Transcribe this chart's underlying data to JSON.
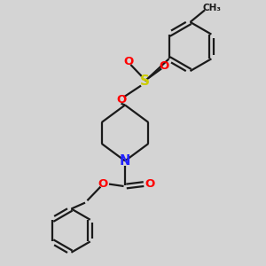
{
  "bg_color": "#d4d4d4",
  "bond_color": "#1a1a1a",
  "atom_colors": {
    "O": "#ff0000",
    "S": "#cccc00",
    "N": "#2222ff",
    "C": "#1a1a1a"
  },
  "figsize": [
    3.0,
    3.0
  ],
  "dpi": 100
}
